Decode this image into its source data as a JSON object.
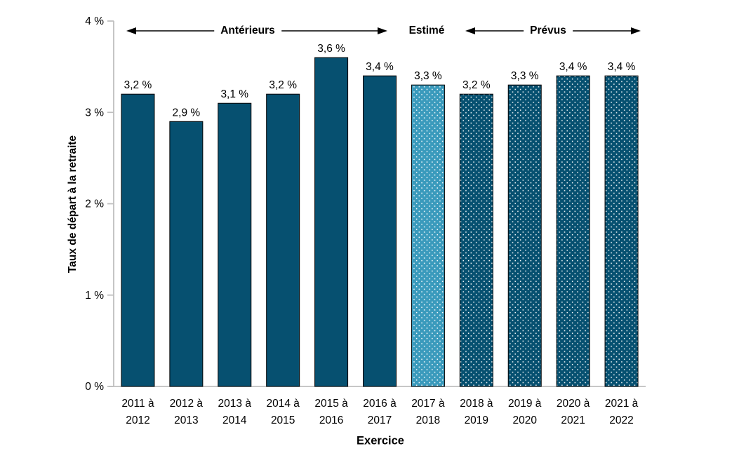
{
  "chart_data": {
    "type": "bar",
    "title": "",
    "xlabel": "Exercice",
    "ylabel": "Taux de départ à la retraite",
    "categories": [
      "2011 à\n2012",
      "2012 à\n2013",
      "2013 à\n2014",
      "2014 à\n2015",
      "2015 à\n2016",
      "2016 à\n2017",
      "2017 à\n2018",
      "2018 à\n2019",
      "2019 à\n2020",
      "2020 à\n2021",
      "2021 à\n2022"
    ],
    "values": [
      3.2,
      2.9,
      3.1,
      3.2,
      3.6,
      3.4,
      3.3,
      3.2,
      3.3,
      3.4,
      3.4
    ],
    "value_labels": [
      "3,2 %",
      "2,9 %",
      "3,1 %",
      "3,2 %",
      "3,6 %",
      "3,4 %",
      "3,3 %",
      "3,2 %",
      "3,3 %",
      "3,4 %",
      "3,4 %"
    ],
    "ylim": [
      0,
      4
    ],
    "yticks": [
      {
        "value": 0,
        "label": "0 %"
      },
      {
        "value": 1,
        "label": "1 %"
      },
      {
        "value": 2,
        "label": "2 %"
      },
      {
        "value": 3,
        "label": "3 %"
      },
      {
        "value": 4,
        "label": "4 %"
      }
    ],
    "grid": false,
    "legend_position": "none",
    "segments": [
      {
        "label": "Antérieurs",
        "from": 0,
        "to": 5,
        "bar_style": "solid-dark",
        "arrow": true
      },
      {
        "label": "Estimé",
        "from": 6,
        "to": 6,
        "bar_style": "dotted-light",
        "arrow": false
      },
      {
        "label": "Prévus",
        "from": 7,
        "to": 10,
        "bar_style": "dotted-dark",
        "arrow": true
      }
    ],
    "colors": {
      "dark_teal": "#065070",
      "light_teal": "#3A9ABC",
      "dot": "#FFFFFF",
      "bar_border": "#000000",
      "axis": "#BFBFBF",
      "text": "#000000"
    }
  }
}
